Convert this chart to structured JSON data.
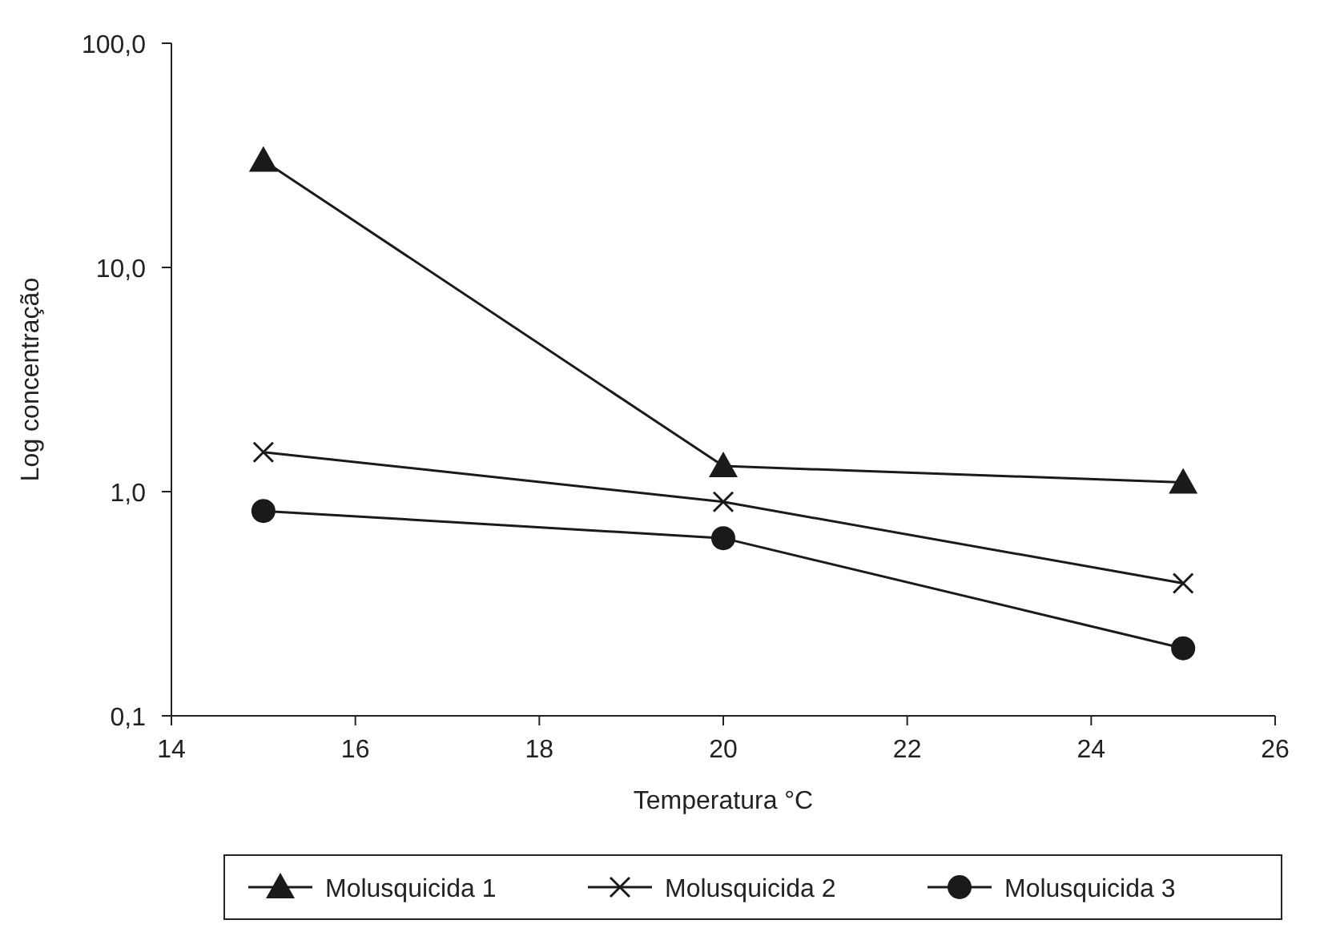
{
  "chart_data": {
    "type": "line",
    "xlabel": "Temperatura °C",
    "ylabel": "Log concentração",
    "x": [
      15,
      20,
      25
    ],
    "log": "y",
    "xlim": [
      14,
      26
    ],
    "xticks": [
      14,
      16,
      18,
      20,
      22,
      24,
      26
    ],
    "ylim": [
      0.1,
      100
    ],
    "yticks": [
      {
        "value": 0.1,
        "label": "0,1"
      },
      {
        "value": 1,
        "label": "1,0"
      },
      {
        "value": 10,
        "label": "10,0"
      },
      {
        "value": 100,
        "label": "100,0"
      }
    ],
    "grid": false,
    "legend": "bottom",
    "line_style": "solid",
    "series": [
      {
        "name": "Molusquicida 1",
        "color": "#1a1a1a",
        "marker": "triangle",
        "values": [
          30,
          1.3,
          1.1
        ]
      },
      {
        "name": "Molusquicida 2",
        "color": "#1a1a1a",
        "marker": "cross",
        "values": [
          1.5,
          0.9,
          0.39
        ]
      },
      {
        "name": "Molusquicida 3",
        "color": "#1a1a1a",
        "marker": "circle",
        "values": [
          0.82,
          0.62,
          0.2
        ]
      }
    ]
  }
}
